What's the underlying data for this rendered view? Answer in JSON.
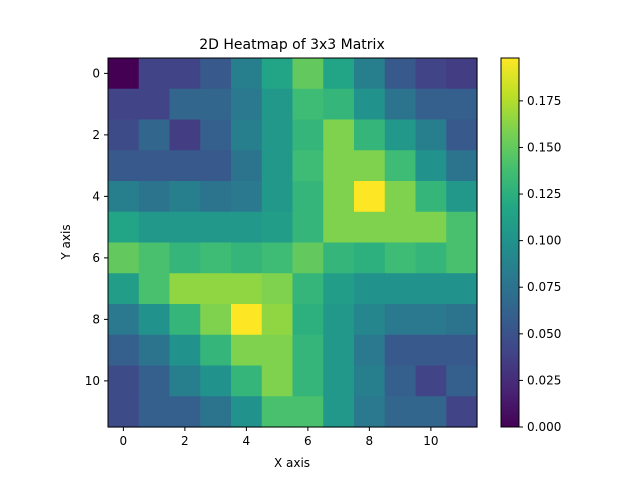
{
  "chart_data": {
    "type": "heatmap",
    "title": "2D Heatmap of 3x3 Matrix",
    "xlabel": "X axis",
    "ylabel": "Y axis",
    "x_ticks": [
      0,
      2,
      4,
      6,
      8,
      10
    ],
    "y_ticks": [
      0,
      2,
      4,
      6,
      8,
      10
    ],
    "colormap": "viridis",
    "vmin": 0.0,
    "vmax": 0.198,
    "colorbar_ticks": [
      "0.000",
      "0.025",
      "0.050",
      "0.075",
      "0.100",
      "0.125",
      "0.150",
      "0.175"
    ],
    "colorbar_tick_values": [
      0.0,
      0.025,
      0.05,
      0.075,
      0.1,
      0.125,
      0.15,
      0.175
    ],
    "rows": 12,
    "cols": 12,
    "values": [
      [
        0.0,
        0.04,
        0.04,
        0.055,
        0.085,
        0.115,
        0.15,
        0.115,
        0.085,
        0.055,
        0.04,
        0.035
      ],
      [
        0.04,
        0.04,
        0.065,
        0.065,
        0.08,
        0.105,
        0.135,
        0.13,
        0.1,
        0.075,
        0.06,
        0.06
      ],
      [
        0.045,
        0.065,
        0.035,
        0.06,
        0.085,
        0.105,
        0.13,
        0.16,
        0.13,
        0.105,
        0.085,
        0.055
      ],
      [
        0.055,
        0.055,
        0.055,
        0.055,
        0.075,
        0.105,
        0.135,
        0.16,
        0.16,
        0.135,
        0.1,
        0.075
      ],
      [
        0.085,
        0.075,
        0.085,
        0.075,
        0.08,
        0.105,
        0.13,
        0.16,
        0.198,
        0.16,
        0.13,
        0.105
      ],
      [
        0.115,
        0.105,
        0.105,
        0.105,
        0.105,
        0.11,
        0.13,
        0.16,
        0.16,
        0.16,
        0.16,
        0.14
      ],
      [
        0.15,
        0.14,
        0.13,
        0.135,
        0.13,
        0.135,
        0.15,
        0.13,
        0.125,
        0.135,
        0.13,
        0.14
      ],
      [
        0.11,
        0.14,
        0.165,
        0.165,
        0.165,
        0.16,
        0.13,
        0.11,
        0.1,
        0.1,
        0.1,
        0.1
      ],
      [
        0.08,
        0.1,
        0.13,
        0.16,
        0.198,
        0.165,
        0.125,
        0.105,
        0.09,
        0.08,
        0.08,
        0.075
      ],
      [
        0.06,
        0.075,
        0.1,
        0.13,
        0.16,
        0.16,
        0.13,
        0.105,
        0.08,
        0.055,
        0.055,
        0.055
      ],
      [
        0.045,
        0.06,
        0.085,
        0.1,
        0.13,
        0.16,
        0.13,
        0.105,
        0.085,
        0.06,
        0.04,
        0.06
      ],
      [
        0.045,
        0.06,
        0.06,
        0.075,
        0.1,
        0.14,
        0.14,
        0.105,
        0.08,
        0.065,
        0.065,
        0.04
      ]
    ]
  }
}
